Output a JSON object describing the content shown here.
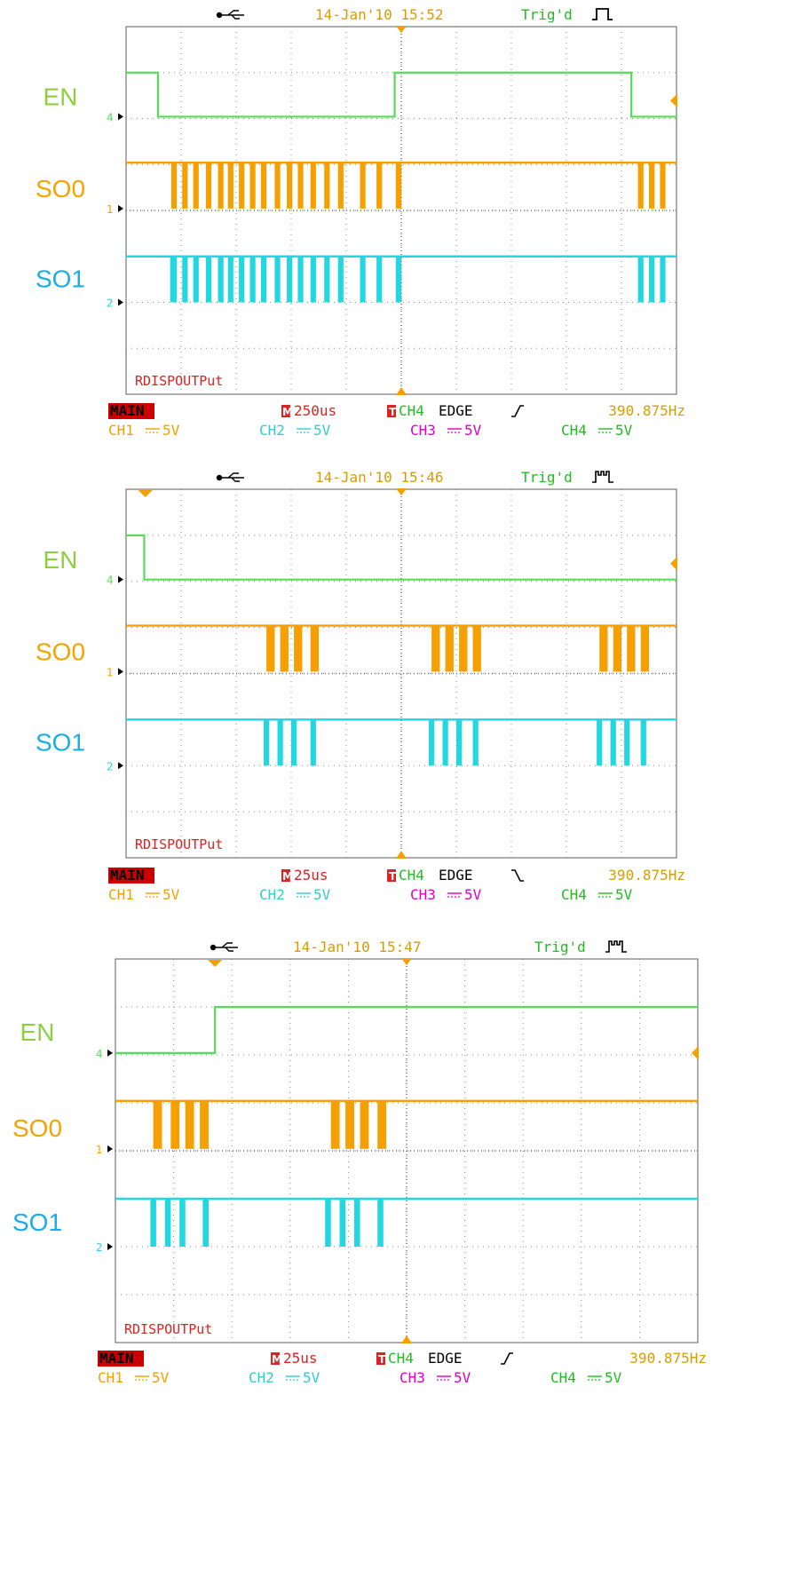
{
  "colors": {
    "en": "#55dd55",
    "so0": "#f5a000",
    "so1": "#22d8e0",
    "en_label": "#8ccf3f",
    "so0_label": "#f5a300",
    "so1_label": "#1aaee6",
    "main_bg": "#cc0000",
    "timebase_red": "#dd2222",
    "freq": "#d99c00",
    "ch1": "#f0a000",
    "ch2": "#33cccc",
    "ch3": "#e000c0",
    "ch4": "#22bb22",
    "marker_orange": "#f5a000",
    "grid": "#888888",
    "frame": "#777777"
  },
  "chart_data": [
    {
      "type": "line",
      "header": {
        "usb_icon": "usb-plug-icon",
        "datetime": "14-Jan'10 15:52",
        "trigger_status": "Trig'd",
        "trigger_icon": "single-pulse-icon"
      },
      "grid": true,
      "divisions": {
        "x": 10,
        "y": 8
      },
      "x_range_div": [
        0,
        10
      ],
      "channel_labels": [
        "EN",
        "SO0",
        "SO1"
      ],
      "channel_markers": [
        "4",
        "1",
        "2"
      ],
      "series": [
        {
          "name": "EN",
          "color_key": "en",
          "marker": "4",
          "high": 1,
          "low": 0,
          "transitions": [
            [
              0.0,
              1
            ],
            [
              0.58,
              0
            ],
            [
              4.88,
              1
            ],
            [
              9.18,
              0
            ]
          ]
        },
        {
          "name": "SO0",
          "color_key": "so0",
          "marker": "1",
          "pulses_div": [
            [
              0.82,
              0.92
            ],
            [
              1.02,
              1.12
            ],
            [
              1.22,
              1.32
            ],
            [
              1.45,
              1.55
            ],
            [
              1.67,
              1.77
            ],
            [
              1.85,
              1.95
            ],
            [
              2.05,
              2.15
            ],
            [
              2.25,
              2.35
            ],
            [
              2.45,
              2.55
            ],
            [
              2.7,
              2.8
            ],
            [
              2.92,
              3.02
            ],
            [
              3.12,
              3.22
            ],
            [
              3.35,
              3.45
            ],
            [
              3.6,
              3.7
            ],
            [
              3.85,
              3.95
            ],
            [
              4.25,
              4.35
            ],
            [
              4.55,
              4.65
            ],
            [
              4.9,
              5.0
            ],
            [
              9.3,
              9.4
            ],
            [
              9.5,
              9.6
            ],
            [
              9.7,
              9.8
            ]
          ]
        },
        {
          "name": "SO1",
          "color_key": "so1",
          "marker": "2",
          "pulses_div": [
            [
              0.8,
              0.92
            ],
            [
              1.02,
              1.12
            ],
            [
              1.22,
              1.32
            ],
            [
              1.45,
              1.55
            ],
            [
              1.67,
              1.77
            ],
            [
              1.85,
              1.95
            ],
            [
              2.05,
              2.15
            ],
            [
              2.25,
              2.35
            ],
            [
              2.45,
              2.55
            ],
            [
              2.7,
              2.8
            ],
            [
              2.92,
              3.02
            ],
            [
              3.12,
              3.22
            ],
            [
              3.35,
              3.45
            ],
            [
              3.6,
              3.7
            ],
            [
              3.85,
              3.95
            ],
            [
              4.25,
              4.35
            ],
            [
              4.55,
              4.65
            ],
            [
              4.9,
              5.0
            ],
            [
              9.3,
              9.4
            ],
            [
              9.5,
              9.6
            ],
            [
              9.7,
              9.8
            ]
          ]
        }
      ],
      "trigger_marker_div": 5.0,
      "right_marker": true,
      "waveform_label": "RDISPOUTPut",
      "status": {
        "mode": "MAIN",
        "timebase": "250us",
        "trigger_source": "CH4",
        "trigger_type": "EDGE",
        "slope": "rising",
        "frequency": "390.875Hz"
      },
      "channels": [
        {
          "name": "CH1",
          "scale": "5V"
        },
        {
          "name": "CH2",
          "scale": "5V"
        },
        {
          "name": "CH3",
          "scale": "5V"
        },
        {
          "name": "CH4",
          "scale": "5V"
        }
      ]
    },
    {
      "type": "line",
      "header": {
        "usb_icon": "usb-plug-icon",
        "datetime": "14-Jan'10 15:46",
        "trigger_status": "Trig'd",
        "trigger_icon": "pulse-train-icon"
      },
      "grid": true,
      "divisions": {
        "x": 10,
        "y": 8
      },
      "x_range_div": [
        0,
        10
      ],
      "channel_labels": [
        "EN",
        "SO0",
        "SO1"
      ],
      "channel_markers": [
        "4",
        "1",
        "2"
      ],
      "series": [
        {
          "name": "EN",
          "color_key": "en",
          "marker": "4",
          "high": 1,
          "low": 0,
          "transitions": [
            [
              0.0,
              1
            ],
            [
              0.33,
              0
            ]
          ]
        },
        {
          "name": "SO0",
          "color_key": "so0",
          "marker": "1",
          "pulses_div": [
            [
              2.55,
              2.7
            ],
            [
              2.8,
              2.95
            ],
            [
              3.05,
              3.2
            ],
            [
              3.35,
              3.5
            ],
            [
              5.55,
              5.7
            ],
            [
              5.8,
              5.95
            ],
            [
              6.05,
              6.2
            ],
            [
              6.3,
              6.45
            ],
            [
              8.6,
              8.75
            ],
            [
              8.85,
              9.0
            ],
            [
              9.1,
              9.25
            ],
            [
              9.35,
              9.5
            ]
          ]
        },
        {
          "name": "SO1",
          "color_key": "so1",
          "marker": "2",
          "pulses_div": [
            [
              2.5,
              2.6
            ],
            [
              2.75,
              2.85
            ],
            [
              3.0,
              3.1
            ],
            [
              3.35,
              3.45
            ],
            [
              5.5,
              5.6
            ],
            [
              5.75,
              5.85
            ],
            [
              6.0,
              6.1
            ],
            [
              6.3,
              6.4
            ],
            [
              8.55,
              8.65
            ],
            [
              8.8,
              8.9
            ],
            [
              9.05,
              9.15
            ],
            [
              9.35,
              9.45
            ]
          ]
        }
      ],
      "trigger_marker_div": 5.0,
      "top_marker_div": 0.35,
      "right_marker": true,
      "waveform_label": "RDISPOUTPut",
      "status": {
        "mode": "MAIN",
        "timebase": "25us",
        "trigger_source": "CH4",
        "trigger_type": "EDGE",
        "slope": "falling",
        "frequency": "390.875Hz"
      },
      "channels": [
        {
          "name": "CH1",
          "scale": "5V"
        },
        {
          "name": "CH2",
          "scale": "5V"
        },
        {
          "name": "CH3",
          "scale": "5V"
        },
        {
          "name": "CH4",
          "scale": "5V"
        }
      ]
    },
    {
      "type": "line",
      "header": {
        "usb_icon": "usb-plug-icon",
        "datetime": "14-Jan'10 15:47",
        "trigger_status": "Trig'd",
        "trigger_icon": "pulse-train-icon"
      },
      "grid": true,
      "divisions": {
        "x": 10,
        "y": 8
      },
      "x_range_div": [
        0,
        10
      ],
      "channel_labels": [
        "EN",
        "SO0",
        "SO1"
      ],
      "channel_markers": [
        "4",
        "1",
        "2"
      ],
      "series": [
        {
          "name": "EN",
          "color_key": "en",
          "marker": "4",
          "high": 1,
          "low": 0,
          "transitions": [
            [
              0.0,
              0
            ],
            [
              1.71,
              1
            ]
          ]
        },
        {
          "name": "SO0",
          "color_key": "so0",
          "marker": "1",
          "pulses_div": [
            [
              0.65,
              0.8
            ],
            [
              0.95,
              1.1
            ],
            [
              1.2,
              1.35
            ],
            [
              1.45,
              1.6
            ],
            [
              3.7,
              3.85
            ],
            [
              3.95,
              4.1
            ],
            [
              4.2,
              4.35
            ],
            [
              4.5,
              4.65
            ]
          ]
        },
        {
          "name": "SO1",
          "color_key": "so1",
          "marker": "2",
          "pulses_div": [
            [
              0.6,
              0.7
            ],
            [
              0.85,
              0.95
            ],
            [
              1.1,
              1.2
            ],
            [
              1.5,
              1.6
            ],
            [
              3.6,
              3.7
            ],
            [
              3.85,
              3.95
            ],
            [
              4.1,
              4.2
            ],
            [
              4.5,
              4.6
            ]
          ]
        }
      ],
      "trigger_marker_div": 5.0,
      "top_marker_div": 1.71,
      "right_marker": true,
      "waveform_label": "RDISPOUTPut",
      "status": {
        "mode": "MAIN",
        "timebase": "25us",
        "trigger_source": "CH4",
        "trigger_type": "EDGE",
        "slope": "rising",
        "frequency": "390.875Hz"
      },
      "channels": [
        {
          "name": "CH1",
          "scale": "5V"
        },
        {
          "name": "CH2",
          "scale": "5V"
        },
        {
          "name": "CH3",
          "scale": "5V"
        },
        {
          "name": "CH4",
          "scale": "5V"
        }
      ]
    }
  ]
}
